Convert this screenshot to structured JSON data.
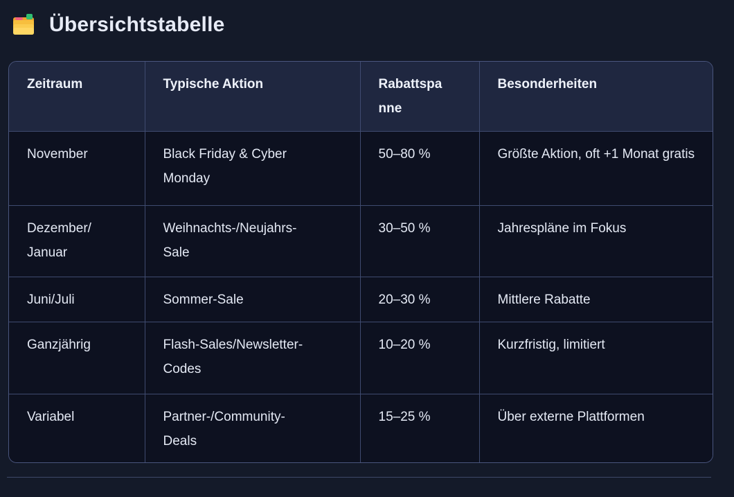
{
  "header": {
    "title": "Übersichtstabelle",
    "icon": "card-index-dividers"
  },
  "chart_data": {
    "type": "table",
    "title": "Übersichtstabelle",
    "columns": [
      "Zeitraum",
      "Typische Aktion",
      "Rabattspanne",
      "Besonderheiten"
    ],
    "rows": [
      [
        "November",
        "Black Friday & Cyber Monday",
        "50–80 %",
        "Größte Aktion, oft +1 Monat gratis"
      ],
      [
        "Dezember/Januar",
        "Weihnachts-/Neujahrs-Sale",
        "30–50 %",
        "Jahrespläne im Fokus"
      ],
      [
        "Juni/Juli",
        "Sommer-Sale",
        "20–30 %",
        "Mittlere Rabatte"
      ],
      [
        "Ganzjährig",
        "Flash-Sales/Newsletter-Codes",
        "10–20 %",
        "Kurzfristig, limitiert"
      ],
      [
        "Variabel",
        "Partner-/Community-Deals",
        "15–25 %",
        "Über externe Plattformen"
      ]
    ]
  },
  "colors": {
    "page_bg": "#141a29",
    "header_bg": "#1f2740",
    "cell_bg": "#0d1120",
    "table_border": "#3f4b70",
    "outer_border": "#4a567e",
    "divider": "#3d4869",
    "text": "#e4e9f4",
    "heading_text": "#eef2fa",
    "title_text": "#e7ebf6"
  }
}
